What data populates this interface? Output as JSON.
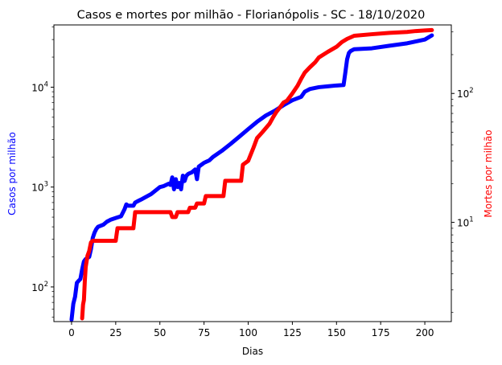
{
  "chart_data": {
    "type": "line",
    "title": "Casos e mortes por milhão - Florianópolis - SC - 18/10/2020",
    "xlabel": "Dias",
    "ylabel_left": "Casos por milhão",
    "ylabel_right": "Mortes por milhão",
    "xlim": [
      -10,
      215
    ],
    "x_ticks": [
      0,
      25,
      50,
      75,
      100,
      125,
      150,
      175,
      200
    ],
    "y_left": {
      "scale": "log",
      "lim": [
        45,
        42000
      ],
      "tick_values": [
        100,
        1000,
        10000
      ],
      "tick_labels": [
        {
          "base": "10",
          "exp": "2"
        },
        {
          "base": "10",
          "exp": "3"
        },
        {
          "base": "10",
          "exp": "4"
        }
      ]
    },
    "y_right": {
      "scale": "log",
      "lim": [
        1.7,
        340
      ],
      "tick_values": [
        10,
        100
      ],
      "tick_labels": [
        {
          "base": "10",
          "exp": "1"
        },
        {
          "base": "10",
          "exp": "2"
        }
      ]
    },
    "grid": false,
    "legend": "none",
    "colors": {
      "cases": "#0000ff",
      "deaths": "#ff0000",
      "left_label": "#0000ff",
      "right_label": "#ff0000"
    },
    "series": [
      {
        "axis": "left",
        "x": [
          0,
          1,
          2,
          3,
          4,
          5,
          6,
          7,
          8,
          9,
          10,
          11,
          12,
          13,
          14,
          15,
          18,
          20,
          22,
          25,
          28,
          30,
          31,
          32,
          35,
          36,
          38,
          40,
          45,
          50,
          52,
          55,
          56,
          57,
          58,
          59,
          60,
          61,
          62,
          63,
          64,
          65,
          66,
          67,
          68,
          69,
          70,
          71,
          72,
          75,
          78,
          80,
          85,
          90,
          95,
          100,
          105,
          110,
          115,
          120,
          125,
          130,
          132,
          135,
          140,
          145,
          150,
          154,
          155,
          156,
          157,
          158,
          160,
          170,
          180,
          190,
          200,
          204
        ],
        "y": [
          47,
          68,
          80,
          110,
          115,
          120,
          150,
          180,
          190,
          195,
          200,
          240,
          310,
          350,
          380,
          400,
          420,
          450,
          470,
          490,
          510,
          600,
          670,
          650,
          650,
          700,
          730,
          760,
          850,
          1000,
          1020,
          1080,
          1050,
          1250,
          950,
          1200,
          1000,
          1100,
          950,
          1300,
          1150,
          1300,
          1350,
          1380,
          1400,
          1450,
          1500,
          1200,
          1600,
          1750,
          1850,
          2000,
          2300,
          2700,
          3200,
          3800,
          4500,
          5200,
          5800,
          6600,
          7400,
          8000,
          9000,
          9600,
          10000,
          10200,
          10400,
          10500,
          14000,
          19000,
          22000,
          23000,
          24000,
          24500,
          26000,
          27500,
          30000,
          33000
        ]
      },
      {
        "axis": "right",
        "x": [
          6,
          6.5,
          7,
          7.5,
          8,
          9,
          10,
          11,
          12,
          13,
          20,
          25,
          26,
          35,
          36,
          56,
          57,
          59,
          60,
          66,
          67,
          70,
          71,
          75,
          76,
          86,
          87,
          96,
          97,
          100,
          103,
          105,
          108,
          112,
          114,
          116,
          118,
          120,
          122,
          125,
          128,
          130,
          132,
          135,
          138,
          140,
          145,
          150,
          153,
          156,
          160,
          170,
          180,
          190,
          195,
          200,
          204
        ],
        "y": [
          1.8,
          2.3,
          2.5,
          3.5,
          4.5,
          5.5,
          6,
          7,
          7.2,
          7.2,
          7.2,
          7.2,
          9,
          9,
          12,
          12,
          11,
          11,
          12,
          12,
          13,
          13,
          14,
          14,
          16,
          16,
          21,
          21,
          28,
          30,
          38,
          45,
          50,
          58,
          65,
          72,
          78,
          85,
          88,
          100,
          115,
          130,
          145,
          160,
          175,
          190,
          210,
          230,
          250,
          265,
          280,
          288,
          295,
          300,
          305,
          308,
          310
        ]
      }
    ]
  }
}
